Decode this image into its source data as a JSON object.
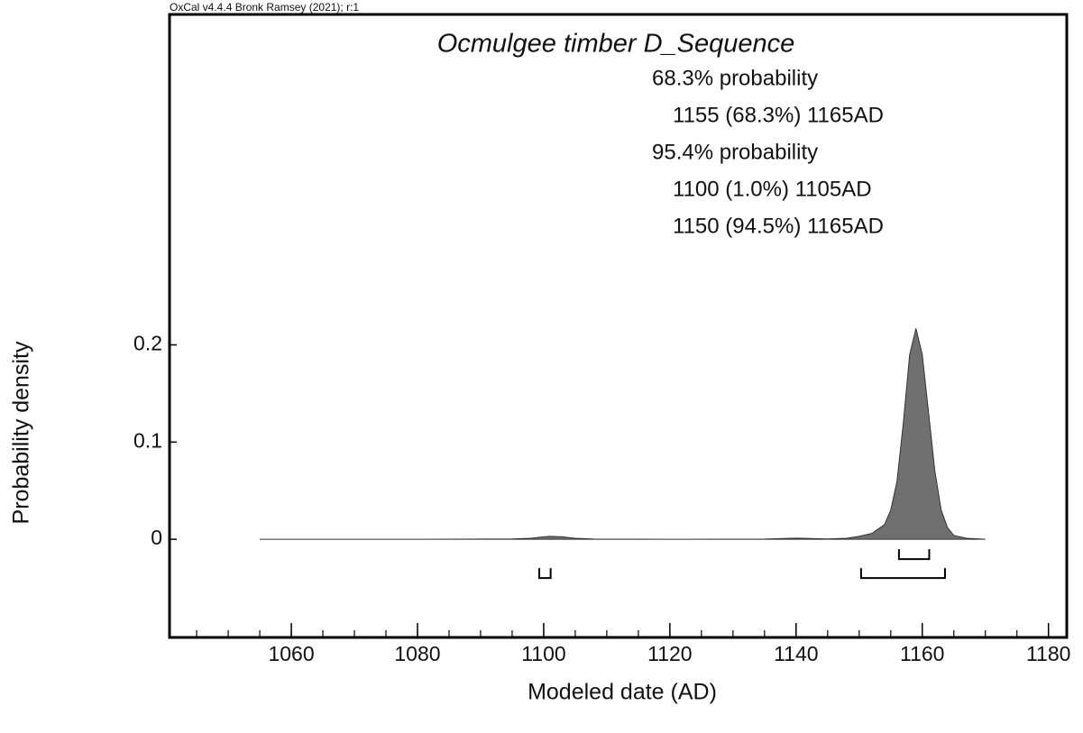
{
  "chart_data": {
    "type": "area",
    "header": "OxCal v4.4.4 Bronk Ramsey (2021); r:1",
    "title": "Ocmulgee timber D_Sequence",
    "summary": [
      {
        "heading": "68.3% probability",
        "ranges": [
          "1155 (68.3%) 1165AD"
        ]
      },
      {
        "heading": "95.4% probability",
        "ranges": [
          "1100 (1.0%) 1105AD",
          "1150 (94.5%) 1165AD"
        ]
      }
    ],
    "x_label": "Modeled date (AD)",
    "y_label": "Probability density",
    "x": [
      1055,
      1060,
      1080,
      1095,
      1098,
      1100,
      1101,
      1103,
      1105,
      1108,
      1120,
      1135,
      1140,
      1145,
      1148,
      1150,
      1152,
      1154,
      1155,
      1156,
      1157,
      1158,
      1159,
      1160,
      1161,
      1162,
      1163,
      1164,
      1165,
      1167,
      1170
    ],
    "values": [
      0,
      0,
      0,
      0.0003,
      0.001,
      0.0025,
      0.003,
      0.0025,
      0.001,
      0.0002,
      0,
      0.0002,
      0.0012,
      0.0004,
      0.001,
      0.003,
      0.006,
      0.015,
      0.03,
      0.06,
      0.12,
      0.19,
      0.217,
      0.19,
      0.13,
      0.07,
      0.03,
      0.012,
      0.004,
      0.001,
      0
    ],
    "color": "#707070",
    "ranges": [
      [
        [
          1156.3,
          1161.1
        ]
      ],
      [
        [
          1099.3,
          1101.1
        ],
        [
          1150.3,
          1163.6
        ]
      ]
    ],
    "xlim": [
      1040.7,
      1182.9
    ],
    "xticks": [
      1060,
      1080,
      1100,
      1120,
      1140,
      1160,
      1180
    ],
    "xminor_step": 5,
    "ylim": [
      -0.101,
      0.54
    ],
    "yticks": [
      0,
      0.1,
      0.2
    ]
  }
}
